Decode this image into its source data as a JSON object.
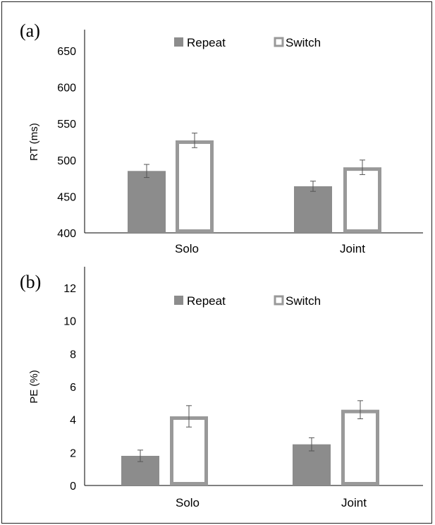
{
  "colors": {
    "repeat_fill": "#8c8c8c",
    "switch_stroke": "#999999",
    "axis": "#000000",
    "errorbar": "#555555"
  },
  "chart_data": [
    {
      "panel_label": "(a)",
      "type": "bar",
      "categories": [
        "Solo",
        "Joint"
      ],
      "ylabel": "RT (ms)",
      "ylim": [
        400,
        650
      ],
      "yticks": [
        400,
        450,
        500,
        550,
        600,
        650
      ],
      "legend_position": "top-center",
      "series": [
        {
          "name": "Repeat",
          "style": "filled",
          "values": [
            485,
            464
          ],
          "errors": [
            9,
            7
          ]
        },
        {
          "name": "Switch",
          "style": "outline",
          "values": [
            527,
            490
          ],
          "errors": [
            10,
            10
          ]
        }
      ]
    },
    {
      "panel_label": "(b)",
      "type": "bar",
      "categories": [
        "Solo",
        "Joint"
      ],
      "ylabel": "PE (%)",
      "ylim": [
        0,
        12
      ],
      "yticks": [
        0,
        2,
        4,
        6,
        8,
        10,
        12
      ],
      "legend_position": "top-center",
      "series": [
        {
          "name": "Repeat",
          "style": "filled",
          "values": [
            1.8,
            2.5
          ],
          "errors": [
            0.35,
            0.4
          ]
        },
        {
          "name": "Switch",
          "style": "outline",
          "values": [
            4.2,
            4.6
          ],
          "errors": [
            0.65,
            0.55
          ]
        }
      ]
    }
  ]
}
